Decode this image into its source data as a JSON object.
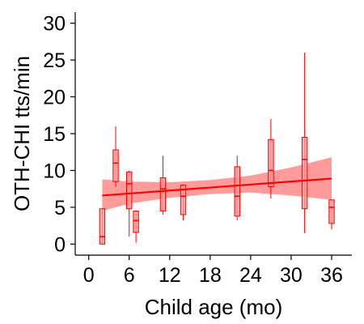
{
  "chart_data": {
    "type": "box",
    "title": "",
    "xlabel": "Child age (mo)",
    "ylabel": "OTH-CHI tts/min",
    "xlim": [
      -2,
      39
    ],
    "ylim": [
      -1.5,
      31.5
    ],
    "xticks": [
      0,
      6,
      12,
      18,
      24,
      30,
      36
    ],
    "yticks": [
      0,
      5,
      10,
      15,
      20,
      25,
      30
    ],
    "grid": false,
    "colors": {
      "box": "#ff0000",
      "box_fill": "#ff9a9a",
      "fit": "#ff0000",
      "band": "#ff8a8a"
    },
    "boxes": [
      {
        "x": 2,
        "min": 0.0,
        "q1": 0.0,
        "median": 1.0,
        "q3": 4.8,
        "max": 4.8
      },
      {
        "x": 4,
        "min": 7.8,
        "q1": 8.5,
        "median": 11.0,
        "q3": 12.8,
        "max": 16.0
      },
      {
        "x": 6,
        "min": 1.0,
        "q1": 4.8,
        "median": 8.2,
        "q3": 9.8,
        "max": 10.0
      },
      {
        "x": 7,
        "min": 0.2,
        "q1": 1.6,
        "median": 3.2,
        "q3": 4.5,
        "max": 4.5
      },
      {
        "x": 11,
        "min": 4.0,
        "q1": 4.5,
        "median": 7.5,
        "q3": 9.0,
        "max": 12.0
      },
      {
        "x": 14,
        "min": 3.2,
        "q1": 4.0,
        "median": 6.5,
        "q3": 8.0,
        "max": 8.0
      },
      {
        "x": 22,
        "min": 3.2,
        "q1": 3.8,
        "median": 6.5,
        "q3": 10.5,
        "max": 12.0
      },
      {
        "x": 27,
        "min": 6.2,
        "q1": 7.8,
        "median": 10.0,
        "q3": 14.2,
        "max": 17.0
      },
      {
        "x": 32,
        "min": 1.5,
        "q1": 4.8,
        "median": 11.5,
        "q3": 14.5,
        "max": 26.0
      },
      {
        "x": 36,
        "min": 2.0,
        "q1": 2.8,
        "median": 5.0,
        "q3": 6.0,
        "max": 6.0
      }
    ],
    "fit": {
      "x": [
        2,
        36
      ],
      "y": [
        6.6,
        8.9
      ]
    },
    "band": {
      "x": [
        2,
        6,
        12,
        18,
        24,
        30,
        36
      ],
      "lower": [
        4.5,
        5.5,
        6.3,
        6.8,
        7.0,
        6.6,
        6.0
      ],
      "upper": [
        8.8,
        8.5,
        8.4,
        8.7,
        9.3,
        10.4,
        11.8
      ]
    }
  }
}
